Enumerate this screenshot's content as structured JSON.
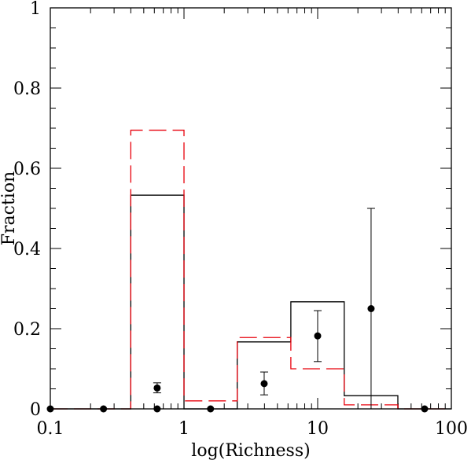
{
  "chart_data": {
    "type": "histogram-step",
    "xlabel": "log(Richness)",
    "ylabel": "Fraction",
    "xscale": "log",
    "xlim": [
      0.1,
      100
    ],
    "ylim": [
      0,
      1
    ],
    "x_ticks": [
      {
        "value": 0.1,
        "label": "0.1"
      },
      {
        "value": 1,
        "label": "1"
      },
      {
        "value": 10,
        "label": "10"
      },
      {
        "value": 100,
        "label": "100"
      }
    ],
    "y_ticks": [
      {
        "value": 0,
        "label": "0"
      },
      {
        "value": 0.2,
        "label": "0.2"
      },
      {
        "value": 0.4,
        "label": "0.4"
      },
      {
        "value": 0.6,
        "label": "0.6"
      },
      {
        "value": 0.8,
        "label": "0.8"
      },
      {
        "value": 1,
        "label": "1"
      }
    ],
    "series": [
      {
        "style": "solid",
        "color": "#000000",
        "bins": [
          {
            "x0": 0.1,
            "x1": 0.4,
            "y": 0
          },
          {
            "x0": 0.4,
            "x1": 1.0,
            "y": 0.533
          },
          {
            "x0": 1.0,
            "x1": 2.5,
            "y": 0
          },
          {
            "x0": 2.5,
            "x1": 6.3,
            "y": 0.167
          },
          {
            "x0": 6.3,
            "x1": 15.8,
            "y": 0.267
          },
          {
            "x0": 15.8,
            "x1": 39.8,
            "y": 0.033
          },
          {
            "x0": 39.8,
            "x1": 100,
            "y": 0
          }
        ]
      },
      {
        "style": "dashed",
        "color": "#e8000b",
        "bins": [
          {
            "x0": 0.1,
            "x1": 0.4,
            "y": 0
          },
          {
            "x0": 0.4,
            "x1": 1.0,
            "y": 0.695
          },
          {
            "x0": 1.0,
            "x1": 2.5,
            "y": 0.02
          },
          {
            "x0": 2.5,
            "x1": 6.3,
            "y": 0.178
          },
          {
            "x0": 6.3,
            "x1": 15.8,
            "y": 0.1
          },
          {
            "x0": 15.8,
            "x1": 39.8,
            "y": 0.01
          },
          {
            "x0": 39.8,
            "x1": 100,
            "y": 0
          }
        ]
      }
    ],
    "points": [
      {
        "x": 0.1,
        "y": 0
      },
      {
        "x": 0.25,
        "y": 0
      },
      {
        "x": 0.63,
        "y": 0
      },
      {
        "x": 0.63,
        "y": 0.052,
        "err_low": 0.04,
        "err_high": 0.065
      },
      {
        "x": 1.58,
        "y": 0
      },
      {
        "x": 3.98,
        "y": 0.063,
        "err_low": 0.035,
        "err_high": 0.092
      },
      {
        "x": 10.0,
        "y": 0.182,
        "err_low": 0.118,
        "err_high": 0.245
      },
      {
        "x": 25.1,
        "y": 0.25,
        "err_low": 0,
        "err_high": 0.5
      },
      {
        "x": 63.1,
        "y": 0
      }
    ]
  }
}
